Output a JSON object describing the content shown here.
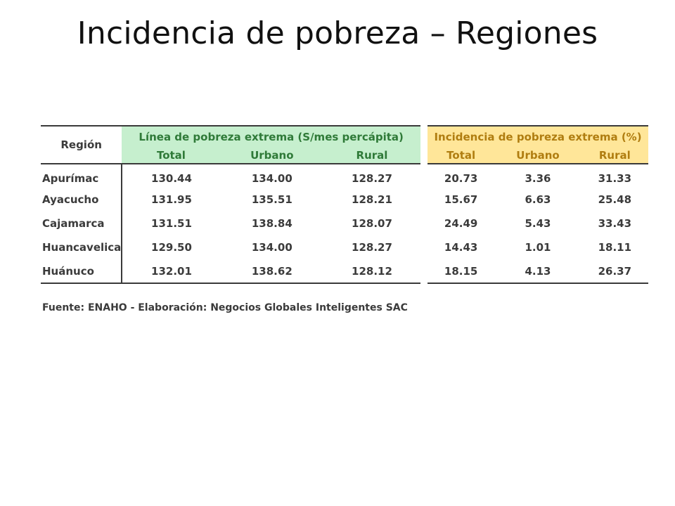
{
  "slide": {
    "title": "Incidencia de pobreza – Regiones"
  },
  "table": {
    "region_header": "Región",
    "line_group_header": "Línea de pobreza extrema (S/mes percápita)",
    "incidence_group_header": "Incidencia de pobreza extrema (%)",
    "subheaders": [
      "Total",
      "Urbano",
      "Rural"
    ],
    "rows": [
      {
        "region": "Apurímac",
        "line": [
          "130.44",
          "134.00",
          "128.27"
        ],
        "incidence": [
          "20.73",
          "3.36",
          "31.33"
        ]
      },
      {
        "region": "Ayacucho",
        "line": [
          "131.95",
          "135.51",
          "128.21"
        ],
        "incidence": [
          "15.67",
          "6.63",
          "25.48"
        ]
      },
      {
        "region": "Cajamarca",
        "line": [
          "131.51",
          "138.84",
          "128.07"
        ],
        "incidence": [
          "24.49",
          "5.43",
          "33.43"
        ]
      },
      {
        "region": "Huancavelica",
        "line": [
          "129.50",
          "134.00",
          "128.27"
        ],
        "incidence": [
          "14.43",
          "1.01",
          "18.11"
        ]
      },
      {
        "region": "Huánuco",
        "line": [
          "132.01",
          "138.62",
          "128.12"
        ],
        "incidence": [
          "18.15",
          "4.13",
          "26.37"
        ]
      }
    ],
    "source": "Fuente: ENAHO - Elaboración: Negocios Globales Inteligentes SAC"
  },
  "colors": {
    "line_header_fill": "#c6efce",
    "line_header_text": "#2f7a38",
    "incidence_header_fill": "#ffe699",
    "incidence_header_text": "#b07d10"
  }
}
